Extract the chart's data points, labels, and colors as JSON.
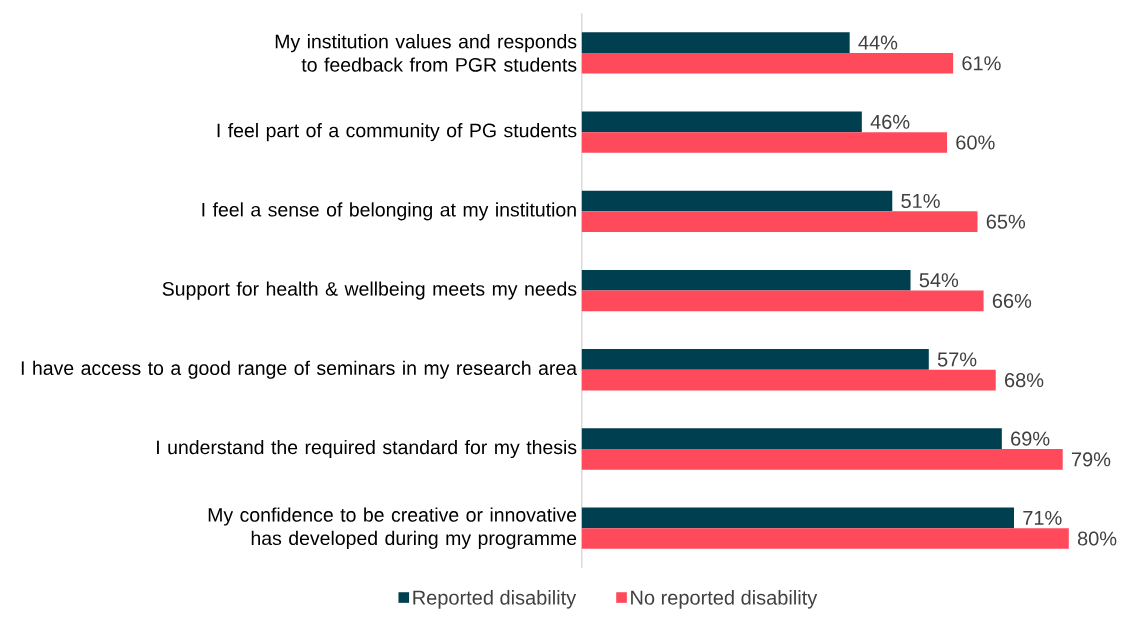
{
  "chart_data": {
    "type": "bar",
    "orientation": "horizontal",
    "categories": [
      "My institution values and responds to feedback from PGR students",
      "I feel part of a community of PG students",
      "I feel a sense of belonging at my institution",
      "Support for health & wellbeing meets my needs",
      "I have access to a good range of seminars in my research area",
      "I understand the required standard for my thesis",
      "My confidence to be creative or innovative has developed during my programme"
    ],
    "series": [
      {
        "name": "Reported disability",
        "color": "#003f4f",
        "values": [
          44,
          46,
          51,
          54,
          57,
          69,
          71
        ],
        "value_labels": [
          "44%",
          "46%",
          "51%",
          "54%",
          "57%",
          "69%",
          "71%"
        ]
      },
      {
        "name": "No reported disability",
        "color": "#ff4a5c",
        "values": [
          61,
          60,
          65,
          66,
          68,
          79,
          80
        ],
        "value_labels": [
          "61%",
          "60%",
          "65%",
          "66%",
          "68%",
          "79%",
          "80%"
        ]
      }
    ],
    "tick_labels": "y",
    "legend": "bottom",
    "grid": false
  }
}
